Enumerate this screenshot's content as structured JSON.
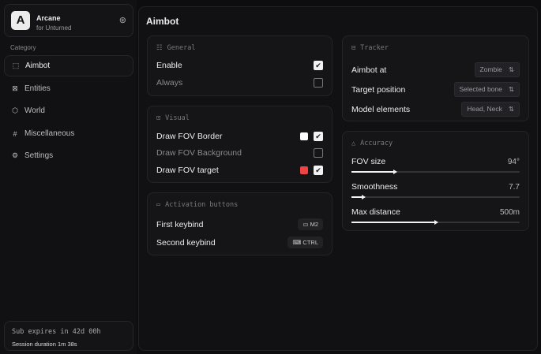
{
  "brand": {
    "logo": "A",
    "name": "Arcane",
    "subtitle": "for Unturned"
  },
  "sidebar": {
    "category_label": "Category",
    "items": [
      {
        "label": "Aimbot",
        "icon": "crosshair-icon",
        "active": true
      },
      {
        "label": "Entities",
        "icon": "scan-face-icon"
      },
      {
        "label": "World",
        "icon": "globe-box-icon"
      },
      {
        "label": "Miscellaneous",
        "icon": "grid-icon"
      },
      {
        "label": "Settings",
        "icon": "gear-icon"
      }
    ]
  },
  "footer": {
    "sub": "Sub expires in 42d 00h",
    "session": "Session duration 1m 38s"
  },
  "page": {
    "title": "Aimbot"
  },
  "general": {
    "title": "General",
    "rows": [
      {
        "label": "Enable",
        "checked": true
      },
      {
        "label": "Always",
        "checked": false
      }
    ]
  },
  "visual": {
    "title": "Visual",
    "rows": [
      {
        "label": "Draw FOV Border",
        "checked": true,
        "color": "#ffffff"
      },
      {
        "label": "Draw FOV Background",
        "checked": false
      },
      {
        "label": "Draw FOV target",
        "checked": true,
        "color": "#ef4444"
      }
    ]
  },
  "activation": {
    "title": "Activation buttons",
    "rows": [
      {
        "label": "First keybind",
        "key": "M2"
      },
      {
        "label": "Second keybind",
        "key": "CTRL"
      }
    ]
  },
  "tracker": {
    "title": "Tracker",
    "rows": [
      {
        "label": "Aimbot at",
        "value": "Zombie"
      },
      {
        "label": "Target position",
        "value": "Selected bone"
      },
      {
        "label": "Model elements",
        "value": "Head, Neck"
      }
    ]
  },
  "accuracy": {
    "title": "Accuracy",
    "sliders": [
      {
        "label": "FOV size",
        "value": "94°",
        "percent": 26
      },
      {
        "label": "Smoothness",
        "value": "7.7",
        "percent": 7
      },
      {
        "label": "Max distance",
        "value": "500m",
        "percent": 50
      }
    ]
  }
}
